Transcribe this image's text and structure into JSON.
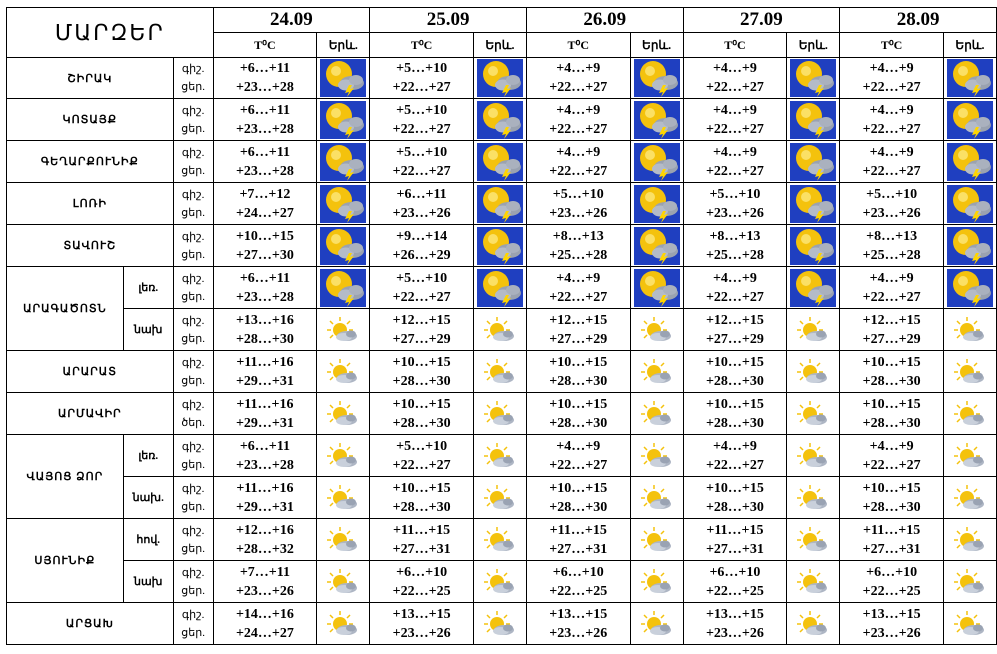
{
  "header": {
    "title": "ՄԱՐԶԵՐ",
    "dates": [
      "24.09",
      "25.09",
      "26.09",
      "27.09",
      "28.09"
    ],
    "temp_label": "T⁰C",
    "weather_label": "Երև."
  },
  "labels": {
    "night": "գիշ.",
    "day": "ցեր.",
    "day_alt": "ծեր."
  },
  "icons": {
    "storm": "sun-cloud-lightning-icon",
    "partly": "sun-cloud-icon"
  },
  "colors": {
    "sky": "#1f3fc0",
    "sun": "#f4c20d",
    "bolt": "#ffd500",
    "cloud": "#9aa2b0"
  },
  "rows": [
    {
      "region": "ՇԻՐԱԿ",
      "sub": "",
      "icon": "storm",
      "day_label": "ցեր.",
      "days": [
        {
          "n": "+6…+11",
          "d": "+23…+28"
        },
        {
          "n": "+5…+10",
          "d": "+22…+27"
        },
        {
          "n": "+4…+9",
          "d": "+22…+27"
        },
        {
          "n": "+4…+9",
          "d": "+22…+27"
        },
        {
          "n": "+4…+9",
          "d": "+22…+27"
        }
      ]
    },
    {
      "region": "ԿՈՏԱՅՔ",
      "sub": "",
      "icon": "storm",
      "day_label": "ցեր.",
      "days": [
        {
          "n": "+6…+11",
          "d": "+23…+28"
        },
        {
          "n": "+5…+10",
          "d": "+22…+27"
        },
        {
          "n": "+4…+9",
          "d": "+22…+27"
        },
        {
          "n": "+4…+9",
          "d": "+22…+27"
        },
        {
          "n": "+4…+9",
          "d": "+22…+27"
        }
      ]
    },
    {
      "region": "ԳԵՂԱՐՔՈՒՆԻՔ",
      "sub": "",
      "icon": "storm",
      "day_label": "ցեր.",
      "days": [
        {
          "n": "+6…+11",
          "d": "+23…+28"
        },
        {
          "n": "+5…+10",
          "d": "+22…+27"
        },
        {
          "n": "+4…+9",
          "d": "+22…+27"
        },
        {
          "n": "+4…+9",
          "d": "+22…+27"
        },
        {
          "n": "+4…+9",
          "d": "+22…+27"
        }
      ]
    },
    {
      "region": "ԼՈՌԻ",
      "sub": "",
      "icon": "storm",
      "day_label": "ցեր.",
      "days": [
        {
          "n": "+7…+12",
          "d": "+24…+27"
        },
        {
          "n": "+6…+11",
          "d": "+23…+26"
        },
        {
          "n": "+5…+10",
          "d": "+23…+26"
        },
        {
          "n": "+5…+10",
          "d": "+23…+26"
        },
        {
          "n": "+5…+10",
          "d": "+23…+26"
        }
      ]
    },
    {
      "region": "ՏԱՎՈՒՇ",
      "sub": "",
      "icon": "storm",
      "day_label": "ցեր.",
      "days": [
        {
          "n": "+10…+15",
          "d": "+27…+30"
        },
        {
          "n": "+9…+14",
          "d": "+26…+29"
        },
        {
          "n": "+8…+13",
          "d": "+25…+28"
        },
        {
          "n": "+8…+13",
          "d": "+25…+28"
        },
        {
          "n": "+8…+13",
          "d": "+25…+28"
        }
      ]
    },
    {
      "region": "ԱՐԱԳԱԾՈՏՆ",
      "sub": "լեռ.",
      "icon": "storm",
      "day_label": "ցեր.",
      "days": [
        {
          "n": "+6…+11",
          "d": "+23…+28"
        },
        {
          "n": "+5…+10",
          "d": "+22…+27"
        },
        {
          "n": "+4…+9",
          "d": "+22…+27"
        },
        {
          "n": "+4…+9",
          "d": "+22…+27"
        },
        {
          "n": "+4…+9",
          "d": "+22…+27"
        }
      ]
    },
    {
      "region": "",
      "sub": "նախ",
      "icon": "partly",
      "day_label": "ցեր.",
      "days": [
        {
          "n": "+13…+16",
          "d": "+28…+30"
        },
        {
          "n": "+12…+15",
          "d": "+27…+29"
        },
        {
          "n": "+12…+15",
          "d": "+27…+29"
        },
        {
          "n": "+12…+15",
          "d": "+27…+29"
        },
        {
          "n": "+12…+15",
          "d": "+27…+29"
        }
      ]
    },
    {
      "region": "ԱՐԱՐԱՏ",
      "sub": "",
      "icon": "partly",
      "day_label": "ցեր.",
      "days": [
        {
          "n": "+11…+16",
          "d": "+29…+31"
        },
        {
          "n": "+10…+15",
          "d": "+28…+30"
        },
        {
          "n": "+10…+15",
          "d": "+28…+30"
        },
        {
          "n": "+10…+15",
          "d": "+28…+30"
        },
        {
          "n": "+10…+15",
          "d": "+28…+30"
        }
      ]
    },
    {
      "region": "ԱՐՄԱՎԻՐ",
      "sub": "",
      "icon": "partly",
      "day_label": "ծեր.",
      "days": [
        {
          "n": "+11…+16",
          "d": "+29…+31"
        },
        {
          "n": "+10…+15",
          "d": "+28…+30"
        },
        {
          "n": "+10…+15",
          "d": "+28…+30"
        },
        {
          "n": "+10…+15",
          "d": "+28…+30"
        },
        {
          "n": "+10…+15",
          "d": "+28…+30"
        }
      ]
    },
    {
      "region": "ՎԱՅՈՑ ՁՈՐ",
      "sub": "լեռ.",
      "icon": "partly",
      "day_label": "ցեր.",
      "days": [
        {
          "n": "+6…+11",
          "d": "+23…+28"
        },
        {
          "n": "+5…+10",
          "d": "+22…+27"
        },
        {
          "n": "+4…+9",
          "d": "+22…+27"
        },
        {
          "n": "+4…+9",
          "d": "+22…+27"
        },
        {
          "n": "+4…+9",
          "d": "+22…+27"
        }
      ]
    },
    {
      "region": "",
      "sub": "նախ.",
      "icon": "partly",
      "day_label": "ցեր.",
      "days": [
        {
          "n": "+11…+16",
          "d": "+29…+31"
        },
        {
          "n": "+10…+15",
          "d": "+28…+30"
        },
        {
          "n": "+10…+15",
          "d": "+28…+30"
        },
        {
          "n": "+10…+15",
          "d": "+28…+30"
        },
        {
          "n": "+10…+15",
          "d": "+28…+30"
        }
      ]
    },
    {
      "region": "ՍՅՈՒՆԻՔ",
      "sub": "հով.",
      "icon": "partly",
      "day_label": "ցեր.",
      "days": [
        {
          "n": "+12…+16",
          "d": "+28…+32"
        },
        {
          "n": "+11…+15",
          "d": "+27…+31"
        },
        {
          "n": "+11…+15",
          "d": "+27…+31"
        },
        {
          "n": "+11…+15",
          "d": "+27…+31"
        },
        {
          "n": "+11…+15",
          "d": "+27…+31"
        }
      ]
    },
    {
      "region": "",
      "sub": "նախ",
      "icon": "partly",
      "day_label": "ցեր.",
      "days": [
        {
          "n": "+7…+11",
          "d": "+23…+26"
        },
        {
          "n": "+6…+10",
          "d": "+22…+25"
        },
        {
          "n": "+6…+10",
          "d": "+22…+25"
        },
        {
          "n": "+6…+10",
          "d": "+22…+25"
        },
        {
          "n": "+6…+10",
          "d": "+22…+25"
        }
      ]
    },
    {
      "region": "ԱՐՑԱԽ",
      "sub": "",
      "icon": "partly",
      "day_label": "ցեր.",
      "days": [
        {
          "n": "+14…+16",
          "d": "+24…+27"
        },
        {
          "n": "+13…+15",
          "d": "+23…+26"
        },
        {
          "n": "+13…+15",
          "d": "+23…+26"
        },
        {
          "n": "+13…+15",
          "d": "+23…+26"
        },
        {
          "n": "+13…+15",
          "d": "+23…+26"
        }
      ]
    }
  ]
}
